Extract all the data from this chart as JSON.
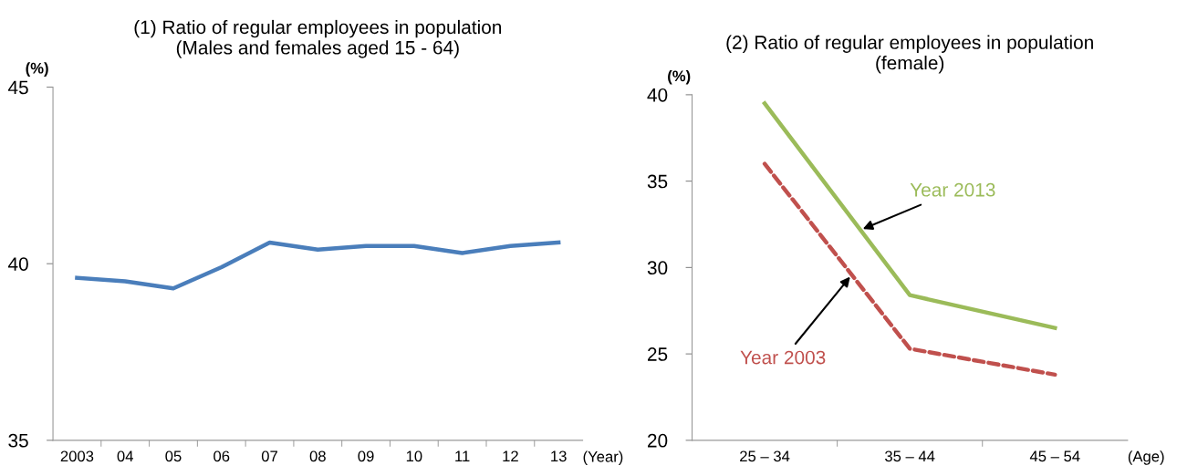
{
  "chart_data": [
    {
      "type": "line",
      "title": "(1) Ratio of regular employees in population\n(Males and females aged 15 - 64)",
      "xlabel": "(Year)",
      "ylabel": "(%)",
      "categories": [
        "2003",
        "04",
        "05",
        "06",
        "07",
        "08",
        "09",
        "10",
        "11",
        "12",
        "13"
      ],
      "series": [
        {
          "color": "#4a7ebb",
          "values": [
            39.6,
            39.5,
            39.3,
            39.9,
            40.6,
            40.4,
            40.5,
            40.5,
            40.3,
            40.5,
            40.6
          ]
        }
      ],
      "ylim": [
        35,
        45
      ],
      "yticks": [
        35,
        40,
        45
      ],
      "grid": false,
      "legend": false,
      "marker": "none",
      "line_style": "solid"
    },
    {
      "type": "line",
      "title": "(2) Ratio of regular employees in population\n(female)",
      "xlabel": "(Age)",
      "ylabel": "(%)",
      "categories": [
        "25 – 34",
        "35 – 44",
        "45 – 54"
      ],
      "series": [
        {
          "name": "Year 2013",
          "color": "#9bbb59",
          "values": [
            39.5,
            28.4,
            26.5
          ],
          "line_style": "solid"
        },
        {
          "name": "Year 2003",
          "color": "#c0504d",
          "values": [
            36.0,
            25.3,
            23.8
          ],
          "line_style": "dashed"
        }
      ],
      "ylim": [
        20,
        40
      ],
      "yticks": [
        20,
        25,
        30,
        35,
        40
      ],
      "grid": false,
      "legend": false,
      "marker": "none"
    }
  ]
}
